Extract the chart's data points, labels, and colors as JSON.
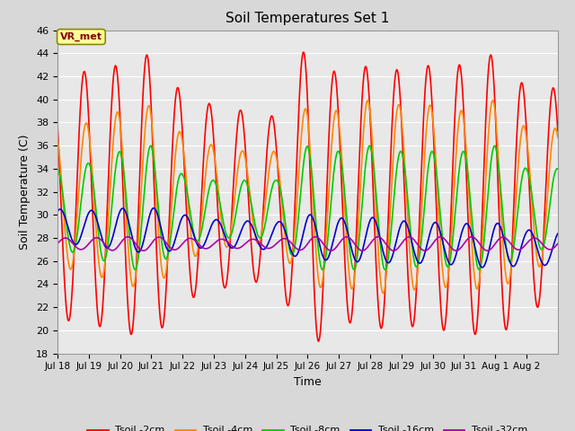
{
  "title": "Soil Temperatures Set 1",
  "xlabel": "Time",
  "ylabel": "Soil Temperature (C)",
  "ylim": [
    18,
    46
  ],
  "yticks": [
    18,
    20,
    22,
    24,
    26,
    28,
    30,
    32,
    34,
    36,
    38,
    40,
    42,
    44,
    46
  ],
  "colors": {
    "Tsoil -2cm": "#ff0000",
    "Tsoil -4cm": "#ff8800",
    "Tsoil -8cm": "#00cc00",
    "Tsoil -16cm": "#0000cc",
    "Tsoil -32cm": "#aa00aa"
  },
  "bg_color": "#e8e8e8",
  "grid_color": "#ffffff",
  "annotation_text": "VR_met",
  "annotation_bg": "#ffff99",
  "annotation_border": "#888800",
  "series": {
    "Tsoil -2cm": {
      "base": 31.5,
      "amplitudes": [
        10.5,
        11.0,
        11.5,
        12.5,
        9.0,
        8.0,
        7.5,
        7.0,
        13.5,
        10.5,
        11.5,
        11.0,
        11.5,
        11.5,
        12.5,
        9.5
      ],
      "phase_hours": 14.5,
      "period_hours": 24.0
    },
    "Tsoil -4cm": {
      "base": 31.5,
      "amplitudes": [
        6.0,
        6.5,
        7.5,
        8.0,
        5.5,
        4.5,
        4.0,
        4.0,
        8.0,
        7.5,
        8.5,
        8.0,
        8.0,
        7.5,
        8.5,
        6.0
      ],
      "phase_hours": 16.0,
      "period_hours": 24.0
    },
    "Tsoil -8cm": {
      "base": 30.5,
      "amplitudes": [
        3.5,
        4.0,
        5.0,
        5.5,
        3.0,
        2.5,
        2.5,
        2.5,
        5.5,
        5.0,
        5.5,
        5.0,
        5.0,
        5.0,
        5.5,
        3.5
      ],
      "phase_hours": 17.5,
      "period_hours": 24.0
    },
    "Tsoil -16cm": {
      "base": 29.0,
      "amplitudes": [
        1.5,
        1.5,
        1.8,
        2.0,
        1.5,
        1.2,
        1.2,
        1.2,
        2.0,
        1.8,
        2.0,
        1.8,
        1.8,
        1.8,
        2.0,
        1.5
      ],
      "phase_hours": 20.0,
      "period_hours": 24.0
    },
    "Tsoil -32cm": {
      "base": 27.5,
      "amplitudes": [
        0.5,
        0.5,
        0.6,
        0.6,
        0.5,
        0.4,
        0.4,
        0.4,
        0.6,
        0.6,
        0.6,
        0.6,
        0.6,
        0.6,
        0.6,
        0.5
      ],
      "phase_hours": 0.0,
      "period_hours": 24.0
    }
  },
  "xtick_labels": [
    "Jul 18",
    "Jul 19",
    "Jul 20",
    "Jul 21",
    "Jul 22",
    "Jul 23",
    "Jul 24",
    "Jul 25",
    "Jul 26",
    "Jul 27",
    "Jul 28",
    "Jul 29",
    "Jul 30",
    "Jul 31",
    "Aug 1",
    "Aug 2"
  ],
  "total_days": 16,
  "pts_per_hour": 10
}
